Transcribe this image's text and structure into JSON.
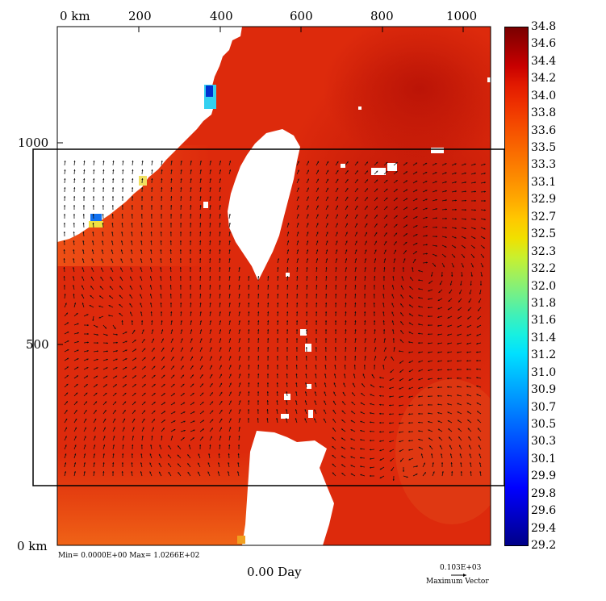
{
  "axes": {
    "top_ticks": [
      "0 km",
      "200",
      "400",
      "600",
      "800",
      "1000"
    ],
    "left_ticks": [
      "1000",
      "500",
      "0 km"
    ]
  },
  "footer": {
    "minmax": "Min= 0.0000E+00  Max= 1.0266E+02",
    "time": "0.00 Day",
    "vector_value": "0.103E+03",
    "vector_label": "Maximum Vector"
  },
  "colorbar": {
    "labels": [
      "34.8",
      "34.6",
      "34.4",
      "34.2",
      "34.0",
      "33.8",
      "33.6",
      "33.5",
      "33.3",
      "33.1",
      "32.9",
      "32.7",
      "32.5",
      "32.3",
      "32.2",
      "32.0",
      "31.8",
      "31.6",
      "31.4",
      "31.2",
      "31.0",
      "30.9",
      "30.7",
      "30.5",
      "30.3",
      "30.1",
      "29.9",
      "29.8",
      "29.6",
      "29.4",
      "29.2"
    ],
    "colors": [
      "#7a0000",
      "#a00000",
      "#c80000",
      "#e21a00",
      "#ee3000",
      "#f44800",
      "#f86000",
      "#fb7800",
      "#fd9000",
      "#ffaa00",
      "#ffc800",
      "#f0e000",
      "#c8f030",
      "#9cf060",
      "#70f08c",
      "#40f0b8",
      "#18f0e0",
      "#00e0ff",
      "#00c0ff",
      "#00a0ff",
      "#0080ff",
      "#0060ff",
      "#0040ff",
      "#0020ff",
      "#0000ff",
      "#0000d8",
      "#0000b0",
      "#000088"
    ]
  },
  "colors": {
    "sea": "#dd2a0c",
    "deep": "#c01608",
    "coast": "#ee5010",
    "land": "#ffffff",
    "vector": "#111111"
  }
}
